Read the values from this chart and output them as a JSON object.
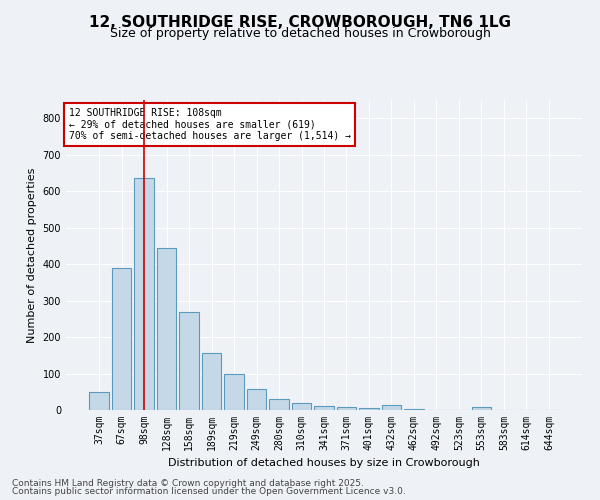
{
  "title_line1": "12, SOUTHRIDGE RISE, CROWBOROUGH, TN6 1LG",
  "title_line2": "Size of property relative to detached houses in Crowborough",
  "xlabel": "Distribution of detached houses by size in Crowborough",
  "ylabel": "Number of detached properties",
  "categories": [
    "37sqm",
    "67sqm",
    "98sqm",
    "128sqm",
    "158sqm",
    "189sqm",
    "219sqm",
    "249sqm",
    "280sqm",
    "310sqm",
    "341sqm",
    "371sqm",
    "401sqm",
    "432sqm",
    "462sqm",
    "492sqm",
    "523sqm",
    "553sqm",
    "583sqm",
    "614sqm",
    "644sqm"
  ],
  "values": [
    50,
    390,
    635,
    445,
    270,
    155,
    100,
    57,
    30,
    18,
    10,
    8,
    5,
    14,
    3,
    0,
    0,
    7,
    0,
    0,
    0
  ],
  "bar_color": "#c5d8e8",
  "bar_edge_color": "#5a9abf",
  "vline_index": 2,
  "vline_color": "#cc0000",
  "annotation_text": "12 SOUTHRIDGE RISE: 108sqm\n← 29% of detached houses are smaller (619)\n70% of semi-detached houses are larger (1,514) →",
  "annotation_box_color": "#ffffff",
  "annotation_box_edge_color": "#cc0000",
  "ylim": [
    0,
    850
  ],
  "yticks": [
    0,
    100,
    200,
    300,
    400,
    500,
    600,
    700,
    800
  ],
  "background_color": "#eef2f7",
  "grid_color": "#ffffff",
  "footer_line1": "Contains HM Land Registry data © Crown copyright and database right 2025.",
  "footer_line2": "Contains public sector information licensed under the Open Government Licence v3.0.",
  "title_fontsize": 11,
  "subtitle_fontsize": 9,
  "axis_label_fontsize": 8,
  "tick_fontsize": 7,
  "annotation_fontsize": 7,
  "footer_fontsize": 6.5
}
